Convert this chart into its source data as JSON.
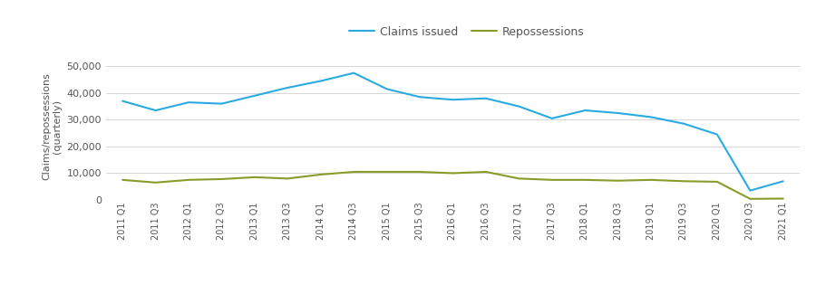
{
  "labels": [
    "2011 Q1",
    "2011 Q3",
    "2012 Q1",
    "2012 Q3",
    "2013 Q1",
    "2013 Q3",
    "2014 Q1",
    "2014 Q3",
    "2015 Q1",
    "2015 Q3",
    "2016 Q1",
    "2016 Q3",
    "2017 Q1",
    "2017 Q3",
    "2018 Q1",
    "2018 Q3",
    "2019 Q1",
    "2019 Q3",
    "2020 Q1",
    "2020 Q3",
    "2021 Q1"
  ],
  "claims": [
    37000,
    33500,
    36500,
    36000,
    39000,
    42000,
    44500,
    47500,
    41500,
    38500,
    37500,
    38000,
    35000,
    30500,
    33500,
    32500,
    31000,
    28500,
    24500,
    3500,
    7000
  ],
  "repossessions": [
    7500,
    6500,
    7500,
    7800,
    8500,
    8000,
    9500,
    10500,
    10500,
    10500,
    10000,
    10500,
    8000,
    7500,
    7500,
    7200,
    7500,
    7000,
    6800,
    400,
    500
  ],
  "claims_color": "#29ABE2",
  "repo_color": "#8B9B2A",
  "ylabel": "Claims/repossessions\n(quarterly)",
  "yticks": [
    0,
    10000,
    20000,
    30000,
    40000,
    50000
  ],
  "ylim": [
    0,
    55000
  ],
  "legend_labels": [
    "Claims issued",
    "Repossessions"
  ],
  "bg_color": "#FFFFFF",
  "axis_label_color": "#555555",
  "grid_color": "#D0D0D0"
}
